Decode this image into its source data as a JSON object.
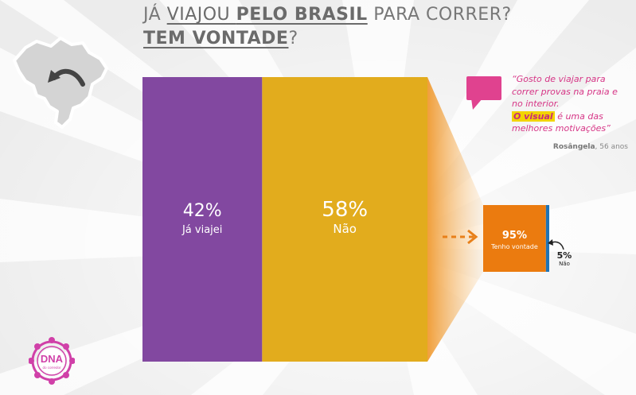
{
  "title": {
    "pre": "JÁ ",
    "underlined_1": "VIAJOU ",
    "bold_underlined": "PELO BRASIL",
    "post": " PARA CORRER?",
    "line2_underlined": "TEM VONTADE",
    "line2_post": "?"
  },
  "quote": {
    "text_1": "“Gosto de viajar para correr provas na praia e no interior.",
    "highlight": "O visual",
    "text_2": " é uma das melhores motivações”",
    "author_name": "Rosângela",
    "author_age": ", 56 anos"
  },
  "logo": {
    "name": "DNA",
    "subtitle": "do corredor"
  },
  "icons": {
    "map": "brazil-map-icon",
    "speech": "speech-bubble-icon",
    "arrow": "dashed-arrow-icon"
  },
  "chart_data": [
    {
      "type": "bar",
      "stacked": true,
      "orientation": "horizontal-stacked",
      "categories": [
        "Já viajei",
        "Não"
      ],
      "values": [
        42,
        58
      ],
      "value_labels": [
        "42%",
        "58%"
      ],
      "colors": [
        "#8248a0",
        "#e2ac1d"
      ]
    },
    {
      "type": "bar",
      "stacked": true,
      "orientation": "horizontal-stacked",
      "parent_category": "Não",
      "categories": [
        "Tenho vontade",
        "Não"
      ],
      "values": [
        95,
        5
      ],
      "value_labels": [
        "95%",
        "5%"
      ],
      "colors": [
        "#eb7b0f",
        "#1f73b5"
      ]
    }
  ]
}
